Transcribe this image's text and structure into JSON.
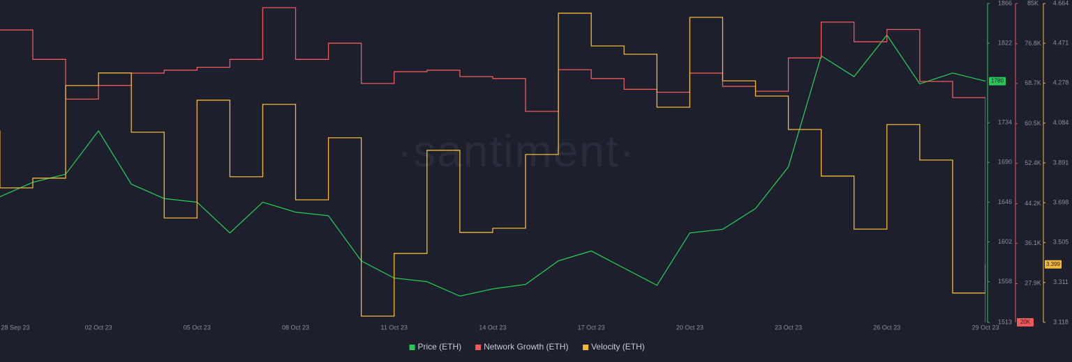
{
  "chart_data": {
    "type": "line",
    "watermark": "·santiment·",
    "x": [
      "28 Sep 23",
      "29 Sep 23",
      "30 Sep 23",
      "01 Oct 23",
      "02 Oct 23",
      "03 Oct 23",
      "04 Oct 23",
      "05 Oct 23",
      "06 Oct 23",
      "07 Oct 23",
      "08 Oct 23",
      "09 Oct 23",
      "10 Oct 23",
      "11 Oct 23",
      "12 Oct 23",
      "13 Oct 23",
      "14 Oct 23",
      "15 Oct 23",
      "16 Oct 23",
      "17 Oct 23",
      "18 Oct 23",
      "19 Oct 23",
      "20 Oct 23",
      "21 Oct 23",
      "22 Oct 23",
      "23 Oct 23",
      "24 Oct 23",
      "25 Oct 23",
      "26 Oct 23",
      "27 Oct 23",
      "28 Oct 23",
      "29 Oct 23"
    ],
    "xticks": [
      "28 Sep 23",
      "02 Oct 23",
      "05 Oct 23",
      "08 Oct 23",
      "11 Oct 23",
      "14 Oct 23",
      "17 Oct 23",
      "20 Oct 23",
      "23 Oct 23",
      "26 Oct 23",
      "29 Oct 23"
    ],
    "series": [
      {
        "name": "Price (ETH)",
        "color": "#26c953",
        "axis": "y",
        "step": false,
        "values": [
          1650,
          1652,
          1668,
          1677,
          1725,
          1666,
          1650,
          1646,
          1612,
          1646,
          1635,
          1631,
          1581,
          1562,
          1558,
          1542,
          1550,
          1555,
          1581,
          1592,
          1573,
          1554,
          1612,
          1616,
          1639,
          1685,
          1808,
          1785,
          1831,
          1777,
          1789,
          1780
        ]
      },
      {
        "name": "Network Growth (ETH)",
        "color": "#ef5a5a",
        "axis": "y2",
        "step": true,
        "values": [
          79600,
          79600,
          73600,
          65500,
          68300,
          70800,
          71400,
          72000,
          73600,
          84150,
          73600,
          76900,
          68700,
          71100,
          71400,
          70100,
          69700,
          63000,
          71500,
          69700,
          67500,
          66900,
          70800,
          68100,
          67100,
          73900,
          81200,
          77200,
          79700,
          69100,
          65800,
          20000
        ],
        "value_labels": [
          null,
          null,
          null,
          null,
          null,
          null,
          null,
          null,
          null,
          null,
          null,
          null,
          null,
          null,
          null,
          null,
          null,
          null,
          null,
          null,
          null,
          null,
          null,
          null,
          null,
          null,
          null,
          null,
          null,
          null,
          null,
          "20K"
        ]
      },
      {
        "name": "Velocity (ETH)",
        "color": "#f5b93a",
        "axis": "y3",
        "step": true,
        "values": [
          4.046,
          3.77,
          3.817,
          4.266,
          4.327,
          4.04,
          3.624,
          4.195,
          3.824,
          4.175,
          3.712,
          4.013,
          3.148,
          3.452,
          3.952,
          3.554,
          3.574,
          3.932,
          4.617,
          4.458,
          4.418,
          4.161,
          4.597,
          4.289,
          4.215,
          4.053,
          3.827,
          3.57,
          4.077,
          3.905,
          3.26,
          3.399
        ]
      }
    ],
    "ylim": [
      1513,
      1866
    ],
    "yticks": [
      1866,
      1822,
      1734,
      1690,
      1646,
      1602,
      1558,
      1513
    ],
    "y2lim": [
      20000,
      85000
    ],
    "y2ticks": [
      {
        "value": 85000,
        "label": "85K"
      },
      {
        "value": 76800,
        "label": "76.8K"
      },
      {
        "value": 68700,
        "label": "68.7K"
      },
      {
        "value": 60500,
        "label": "60.5K"
      },
      {
        "value": 52400,
        "label": "52.4K"
      },
      {
        "value": 44200,
        "label": "44.2K"
      },
      {
        "value": 36100,
        "label": "36.1K"
      },
      {
        "value": 27900,
        "label": "27.9K"
      }
    ],
    "y3lim": [
      3.118,
      4.664
    ],
    "y3ticks": [
      4.664,
      4.471,
      4.278,
      4.084,
      3.891,
      3.698,
      3.505,
      3.311,
      3.118
    ],
    "grid": false,
    "legend": "bottom"
  }
}
